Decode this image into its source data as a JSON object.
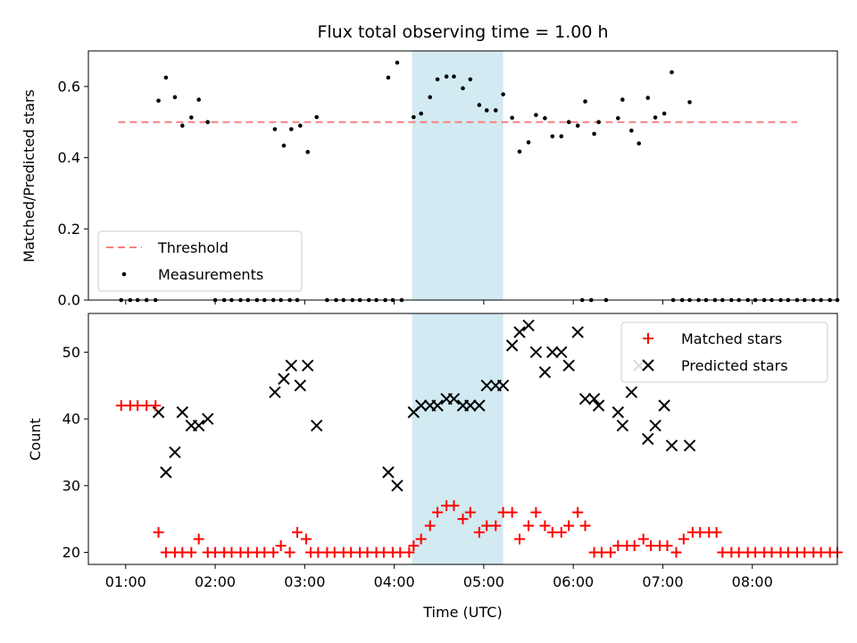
{
  "figure": {
    "title": "Flux total observing time = 1.00 h"
  },
  "chart_data": [
    {
      "type": "scatter",
      "ylabel": "Matched/Predicted stars",
      "xlabel": "",
      "xlim": [
        "00:35",
        "08:57"
      ],
      "ylim": [
        0,
        0.7
      ],
      "x_unit": "time (UTC)",
      "grid": false,
      "legend_position": "lower-left",
      "y_ticks": [
        "0.0",
        "0.2",
        "0.4",
        "0.6"
      ],
      "y_tick_values": [
        0,
        0.2,
        0.4,
        0.6
      ],
      "threshold": {
        "name": "Threshold",
        "value": 0.5,
        "x_range": [
          "00:55",
          "08:30"
        ],
        "color": "#f88080",
        "style": "dashed"
      },
      "highlight_band": {
        "x_start": "04:12",
        "x_end": "05:13",
        "color": "#add8e6"
      },
      "series": [
        {
          "name": "Measurements",
          "color": "#000000",
          "marker": "dot",
          "points": [
            [
              "00:57",
              0
            ],
            [
              "01:03",
              0
            ],
            [
              "01:08",
              0
            ],
            [
              "01:14",
              0
            ],
            [
              "01:20",
              0
            ],
            [
              "01:22",
              0.56
            ],
            [
              "01:27",
              0.625
            ],
            [
              "01:33",
              0.57
            ],
            [
              "01:38",
              0.49
            ],
            [
              "01:44",
              0.513
            ],
            [
              "01:49",
              0.563
            ],
            [
              "01:55",
              0.5
            ],
            [
              "02:00",
              0
            ],
            [
              "02:06",
              0
            ],
            [
              "02:11",
              0
            ],
            [
              "02:17",
              0
            ],
            [
              "02:22",
              0
            ],
            [
              "02:28",
              0
            ],
            [
              "02:33",
              0
            ],
            [
              "02:39",
              0
            ],
            [
              "02:44",
              0
            ],
            [
              "02:50",
              0
            ],
            [
              "02:55",
              0
            ],
            [
              "02:40",
              0.48
            ],
            [
              "02:46",
              0.434
            ],
            [
              "02:51",
              0.48
            ],
            [
              "02:57",
              0.49
            ],
            [
              "03:02",
              0.416
            ],
            [
              "03:08",
              0.514
            ],
            [
              "03:15",
              0
            ],
            [
              "03:21",
              0
            ],
            [
              "03:26",
              0
            ],
            [
              "03:32",
              0
            ],
            [
              "03:37",
              0
            ],
            [
              "03:43",
              0
            ],
            [
              "03:48",
              0
            ],
            [
              "03:54",
              0
            ],
            [
              "03:59",
              0
            ],
            [
              "04:05",
              0
            ],
            [
              "03:56",
              0.625
            ],
            [
              "04:02",
              0.667
            ],
            [
              "04:13",
              0.514
            ],
            [
              "04:18",
              0.524
            ],
            [
              "04:24",
              0.57
            ],
            [
              "04:29",
              0.62
            ],
            [
              "04:35",
              0.628
            ],
            [
              "04:40",
              0.628
            ],
            [
              "04:46",
              0.595
            ],
            [
              "04:51",
              0.62
            ],
            [
              "04:57",
              0.548
            ],
            [
              "05:02",
              0.533
            ],
            [
              "05:08",
              0.533
            ],
            [
              "05:13",
              0.578
            ],
            [
              "05:19",
              0.512
            ],
            [
              "05:24",
              0.417
            ],
            [
              "05:30",
              0.443
            ],
            [
              "05:35",
              0.52
            ],
            [
              "05:41",
              0.511
            ],
            [
              "05:46",
              0.46
            ],
            [
              "05:52",
              0.46
            ],
            [
              "05:57",
              0.5
            ],
            [
              "06:03",
              0.49
            ],
            [
              "06:08",
              0.558
            ],
            [
              "06:14",
              0.467
            ],
            [
              "06:06",
              0
            ],
            [
              "06:12",
              0
            ],
            [
              "06:22",
              0
            ],
            [
              "06:17",
              0.5
            ],
            [
              "06:30",
              0.511
            ],
            [
              "06:33",
              0.563
            ],
            [
              "06:39",
              0.476
            ],
            [
              "06:44",
              0.44
            ],
            [
              "06:50",
              0.568
            ],
            [
              "06:55",
              0.513
            ],
            [
              "07:01",
              0.524
            ],
            [
              "07:06",
              0.64
            ],
            [
              "07:18",
              0.556
            ],
            [
              "07:07",
              0
            ],
            [
              "07:13",
              0
            ],
            [
              "07:18",
              0
            ],
            [
              "07:24",
              0
            ],
            [
              "07:29",
              0
            ],
            [
              "07:35",
              0
            ],
            [
              "07:40",
              0
            ],
            [
              "07:46",
              0
            ],
            [
              "07:51",
              0
            ],
            [
              "07:57",
              0
            ],
            [
              "08:02",
              0
            ],
            [
              "08:08",
              0
            ],
            [
              "08:13",
              0
            ],
            [
              "08:19",
              0
            ],
            [
              "08:24",
              0
            ],
            [
              "08:30",
              0
            ],
            [
              "08:35",
              0
            ],
            [
              "08:41",
              0
            ],
            [
              "08:46",
              0
            ],
            [
              "08:52",
              0
            ],
            [
              "08:57",
              0
            ]
          ]
        }
      ]
    },
    {
      "type": "scatter",
      "ylabel": "Count",
      "xlabel": "Time (UTC)",
      "xlim": [
        "00:35",
        "08:57"
      ],
      "ylim": [
        18.2,
        55.8
      ],
      "x_ticks": [
        "01:00",
        "02:00",
        "03:00",
        "04:00",
        "05:00",
        "06:00",
        "07:00",
        "08:00"
      ],
      "y_ticks": [
        "20",
        "30",
        "40",
        "50"
      ],
      "y_tick_values": [
        20,
        30,
        40,
        50
      ],
      "grid": false,
      "legend_position": "top-right",
      "highlight_band": {
        "x_start": "04:12",
        "x_end": "05:13",
        "color": "#add8e6"
      },
      "series": [
        {
          "name": "Matched stars",
          "color": "#ff0000",
          "marker": "plus",
          "points": [
            [
              "00:57",
              42
            ],
            [
              "01:03",
              42
            ],
            [
              "01:08",
              42
            ],
            [
              "01:14",
              42
            ],
            [
              "01:20",
              42
            ],
            [
              "01:22",
              23
            ],
            [
              "01:27",
              20
            ],
            [
              "01:33",
              20
            ],
            [
              "01:38",
              20
            ],
            [
              "01:44",
              20
            ],
            [
              "01:49",
              22
            ],
            [
              "01:55",
              20
            ],
            [
              "02:00",
              20
            ],
            [
              "02:06",
              20
            ],
            [
              "02:11",
              20
            ],
            [
              "02:17",
              20
            ],
            [
              "02:22",
              20
            ],
            [
              "02:28",
              20
            ],
            [
              "02:33",
              20
            ],
            [
              "02:39",
              20
            ],
            [
              "02:44",
              21
            ],
            [
              "02:50",
              20
            ],
            [
              "02:55",
              23
            ],
            [
              "03:01",
              22
            ],
            [
              "03:04",
              20
            ],
            [
              "03:09",
              20
            ],
            [
              "03:15",
              20
            ],
            [
              "03:20",
              20
            ],
            [
              "03:26",
              20
            ],
            [
              "03:31",
              20
            ],
            [
              "03:37",
              20
            ],
            [
              "03:42",
              20
            ],
            [
              "03:48",
              20
            ],
            [
              "03:53",
              20
            ],
            [
              "03:59",
              20
            ],
            [
              "04:04",
              20
            ],
            [
              "04:10",
              20
            ],
            [
              "04:13",
              21
            ],
            [
              "04:18",
              22
            ],
            [
              "04:24",
              24
            ],
            [
              "04:29",
              26
            ],
            [
              "04:35",
              27
            ],
            [
              "04:40",
              27
            ],
            [
              "04:46",
              25
            ],
            [
              "04:51",
              26
            ],
            [
              "04:57",
              23
            ],
            [
              "05:02",
              24
            ],
            [
              "05:08",
              24
            ],
            [
              "05:13",
              26
            ],
            [
              "05:19",
              26
            ],
            [
              "05:24",
              22
            ],
            [
              "05:30",
              24
            ],
            [
              "05:35",
              26
            ],
            [
              "05:41",
              24
            ],
            [
              "05:46",
              23
            ],
            [
              "05:52",
              23
            ],
            [
              "05:57",
              24
            ],
            [
              "06:03",
              26
            ],
            [
              "06:08",
              24
            ],
            [
              "06:14",
              20
            ],
            [
              "06:19",
              20
            ],
            [
              "06:25",
              20
            ],
            [
              "06:30",
              21
            ],
            [
              "06:36",
              21
            ],
            [
              "06:41",
              21
            ],
            [
              "06:47",
              22
            ],
            [
              "06:52",
              21
            ],
            [
              "06:58",
              21
            ],
            [
              "07:03",
              21
            ],
            [
              "07:09",
              20
            ],
            [
              "07:14",
              22
            ],
            [
              "07:20",
              23
            ],
            [
              "07:25",
              23
            ],
            [
              "07:31",
              23
            ],
            [
              "07:36",
              23
            ],
            [
              "07:40",
              20
            ],
            [
              "07:46",
              20
            ],
            [
              "07:51",
              20
            ],
            [
              "07:57",
              20
            ],
            [
              "08:02",
              20
            ],
            [
              "08:08",
              20
            ],
            [
              "08:13",
              20
            ],
            [
              "08:19",
              20
            ],
            [
              "08:24",
              20
            ],
            [
              "08:30",
              20
            ],
            [
              "08:35",
              20
            ],
            [
              "08:41",
              20
            ],
            [
              "08:46",
              20
            ],
            [
              "08:52",
              20
            ],
            [
              "08:57",
              20
            ]
          ]
        },
        {
          "name": "Predicted stars",
          "color": "#000000",
          "marker": "x",
          "points": [
            [
              "01:22",
              41
            ],
            [
              "01:27",
              32
            ],
            [
              "01:33",
              35
            ],
            [
              "01:38",
              41
            ],
            [
              "01:44",
              39
            ],
            [
              "01:49",
              39
            ],
            [
              "01:55",
              40
            ],
            [
              "02:40",
              44
            ],
            [
              "02:46",
              46
            ],
            [
              "02:51",
              48
            ],
            [
              "02:57",
              45
            ],
            [
              "03:02",
              48
            ],
            [
              "03:08",
              39
            ],
            [
              "03:56",
              32
            ],
            [
              "04:02",
              30
            ],
            [
              "04:13",
              41
            ],
            [
              "04:18",
              42
            ],
            [
              "04:24",
              42
            ],
            [
              "04:29",
              42
            ],
            [
              "04:35",
              43
            ],
            [
              "04:40",
              43
            ],
            [
              "04:46",
              42
            ],
            [
              "04:51",
              42
            ],
            [
              "04:57",
              42
            ],
            [
              "05:02",
              45
            ],
            [
              "05:08",
              45
            ],
            [
              "05:13",
              45
            ],
            [
              "05:19",
              51
            ],
            [
              "05:24",
              53
            ],
            [
              "05:30",
              54
            ],
            [
              "05:35",
              50
            ],
            [
              "05:41",
              47
            ],
            [
              "05:46",
              50
            ],
            [
              "05:52",
              50
            ],
            [
              "05:57",
              48
            ],
            [
              "06:03",
              53
            ],
            [
              "06:08",
              43
            ],
            [
              "06:14",
              43
            ],
            [
              "06:17",
              42
            ],
            [
              "06:30",
              41
            ],
            [
              "06:33",
              39
            ],
            [
              "06:39",
              44
            ],
            [
              "06:44",
              48
            ],
            [
              "06:50",
              37
            ],
            [
              "06:55",
              39
            ],
            [
              "07:01",
              42
            ],
            [
              "07:06",
              36
            ],
            [
              "07:18",
              36
            ]
          ]
        }
      ]
    }
  ]
}
